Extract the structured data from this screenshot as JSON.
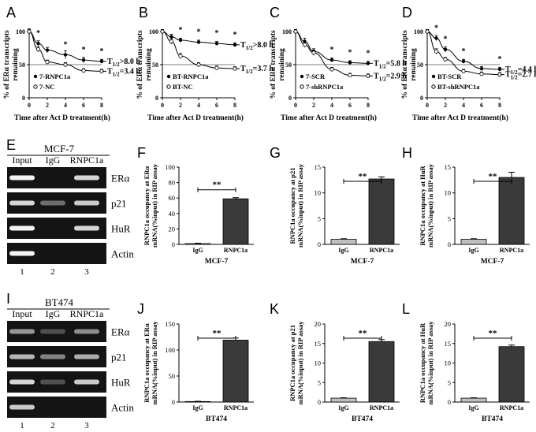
{
  "chart_data": [
    {
      "panel": "A",
      "type": "line",
      "ylabel": "% of ERα transcripts remaining",
      "xlabel": "Time after Act D treatment(h)",
      "xticks": [
        0,
        2,
        4,
        6,
        8
      ],
      "yticks": [
        0,
        50,
        100
      ],
      "xlim": [
        0,
        8
      ],
      "ylim": [
        0,
        100
      ],
      "reference_line": 50,
      "series": [
        {
          "name": "7-RNPC1a",
          "marker": "filled",
          "x": [
            0,
            1,
            2,
            4,
            6,
            8
          ],
          "y": [
            100,
            82,
            72,
            65,
            57,
            55
          ],
          "err": [
            4,
            4,
            4,
            6,
            4,
            3
          ],
          "half_life": "T1/2>8.0 h"
        },
        {
          "name": "7-NC",
          "marker": "open",
          "x": [
            0,
            1,
            2,
            4,
            6,
            8
          ],
          "y": [
            100,
            73,
            54,
            50,
            41,
            40
          ],
          "err": [
            3,
            4,
            3,
            3,
            3,
            3
          ],
          "half_life": "T1/2=3.4 h"
        }
      ],
      "significance": [
        {
          "x": 1,
          "label": "*"
        },
        {
          "x": 4,
          "label": "*"
        },
        {
          "x": 6,
          "label": "*"
        },
        {
          "x": 8,
          "label": "*"
        }
      ]
    },
    {
      "panel": "B",
      "type": "line",
      "ylabel": "% of ERα transcripts remaining",
      "xlabel": "Time after Act D treatment(h)",
      "xticks": [
        0,
        2,
        4,
        6,
        8
      ],
      "yticks": [
        0,
        50,
        100
      ],
      "xlim": [
        0,
        8
      ],
      "ylim": [
        0,
        100
      ],
      "reference_line": 50,
      "series": [
        {
          "name": "BT-RNPC1a",
          "marker": "filled",
          "x": [
            0,
            1,
            2,
            4,
            6,
            8
          ],
          "y": [
            100,
            92,
            87,
            84,
            82,
            80
          ],
          "err": [
            3,
            4,
            3,
            3,
            3,
            3
          ],
          "half_life": "T1/2>8.0 h"
        },
        {
          "name": "BT-NC",
          "marker": "open",
          "x": [
            0,
            1,
            2,
            4,
            6,
            8
          ],
          "y": [
            100,
            85,
            63,
            50,
            45,
            44
          ],
          "err": [
            3,
            4,
            4,
            3,
            3,
            3
          ],
          "half_life": "T1/2=3.7 h"
        }
      ],
      "significance": [
        {
          "x": 2,
          "label": "*"
        },
        {
          "x": 4,
          "label": "*"
        },
        {
          "x": 6,
          "label": "*"
        },
        {
          "x": 8,
          "label": "*"
        }
      ]
    },
    {
      "panel": "C",
      "type": "line",
      "ylabel": "% of ERα transcripts remaining",
      "xlabel": "Time after Act D treatment(h)",
      "xticks": [
        0,
        2,
        4,
        6,
        8
      ],
      "yticks": [
        0,
        50,
        100
      ],
      "xlim": [
        0,
        8
      ],
      "ylim": [
        0,
        100
      ],
      "reference_line": 50,
      "series": [
        {
          "name": "7-SCR",
          "marker": "filled",
          "x": [
            0,
            1,
            2,
            4,
            6,
            8
          ],
          "y": [
            100,
            85,
            70,
            57,
            53,
            52
          ],
          "err": [
            3,
            5,
            4,
            3,
            3,
            3
          ],
          "half_life": "T1/2=5.8 h"
        },
        {
          "name": "7-shRNPC1a",
          "marker": "open",
          "x": [
            0,
            1,
            2,
            4,
            6,
            8
          ],
          "y": [
            100,
            80,
            68,
            43,
            34,
            33
          ],
          "err": [
            3,
            4,
            4,
            3,
            3,
            3
          ],
          "half_life": "T1/2=2.9 h"
        }
      ],
      "significance": [
        {
          "x": 4,
          "label": "*"
        },
        {
          "x": 6,
          "label": "*"
        },
        {
          "x": 8,
          "label": "*"
        }
      ]
    },
    {
      "panel": "D",
      "type": "line",
      "ylabel": "% of ERα transcripts remaining",
      "xlabel": "Time after Act D treatment(h)",
      "xticks": [
        0,
        2,
        4,
        6,
        8
      ],
      "yticks": [
        0,
        50,
        100
      ],
      "xlim": [
        0,
        8
      ],
      "ylim": [
        0,
        100
      ],
      "reference_line": 50,
      "series": [
        {
          "name": "BT-SCR",
          "marker": "filled",
          "x": [
            0,
            1,
            2,
            4,
            6,
            8
          ],
          "y": [
            100,
            90,
            73,
            55,
            44,
            43
          ],
          "err": [
            3,
            4,
            4,
            3,
            3,
            3
          ],
          "half_life": "T1/2=4.4 h"
        },
        {
          "name": "BT-shRNPC1a",
          "marker": "open",
          "x": [
            0,
            1,
            2,
            4,
            6,
            8
          ],
          "y": [
            100,
            70,
            58,
            40,
            36,
            35
          ],
          "err": [
            3,
            4,
            3,
            3,
            3,
            3
          ],
          "half_life": "T1/2=2.7 h"
        }
      ],
      "significance": [
        {
          "x": 1,
          "label": "*"
        },
        {
          "x": 2,
          "label": "*"
        },
        {
          "x": 4,
          "label": "*"
        },
        {
          "x": 8,
          "label": "*"
        }
      ]
    },
    {
      "panel": "F",
      "type": "bar",
      "ylabel": "RNPC1a occupancy at ERα mRNA(%input) in RIP assay",
      "xlabel": "MCF-7",
      "categories": [
        "IgG",
        "RNPC1a"
      ],
      "values": [
        1,
        59
      ],
      "err": [
        0.5,
        1.5
      ],
      "bar_colors": [
        "#bfbfbf",
        "#3a3a3a"
      ],
      "yticks": [
        0,
        20,
        40,
        60,
        80,
        100
      ],
      "ylim": [
        0,
        100
      ],
      "significance": "**"
    },
    {
      "panel": "G",
      "type": "bar",
      "ylabel": "RNPC1a occupancy at p21 mRNA(%input) in RIP assay",
      "xlabel": "MCF-7",
      "categories": [
        "IgG",
        "RNPC1a"
      ],
      "values": [
        1,
        12.7
      ],
      "err": [
        0.1,
        0.4
      ],
      "bar_colors": [
        "#bfbfbf",
        "#3a3a3a"
      ],
      "yticks": [
        0,
        5,
        10,
        15
      ],
      "ylim": [
        0,
        15
      ],
      "significance": "**"
    },
    {
      "panel": "H",
      "type": "bar",
      "ylabel": "RNPC1a occupancy at HuR mRNA(%input) in RIP assay",
      "xlabel": "MCF-7",
      "categories": [
        "IgG",
        "RNPC1a"
      ],
      "values": [
        1,
        13
      ],
      "err": [
        0.1,
        1
      ],
      "bar_colors": [
        "#bfbfbf",
        "#3a3a3a"
      ],
      "yticks": [
        0,
        5,
        10,
        15
      ],
      "ylim": [
        0,
        15
      ],
      "significance": "**"
    },
    {
      "panel": "J",
      "type": "bar",
      "ylabel": "RNPC1a occupancy at ERα mRNA(%input) in RIP assay",
      "xlabel": "BT474",
      "categories": [
        "IgG",
        "RNPC1a"
      ],
      "values": [
        1,
        119
      ],
      "err": [
        0.5,
        4
      ],
      "bar_colors": [
        "#bfbfbf",
        "#3a3a3a"
      ],
      "yticks": [
        0,
        50,
        100,
        150
      ],
      "ylim": [
        0,
        150
      ],
      "significance": "**"
    },
    {
      "panel": "K",
      "type": "bar",
      "ylabel": "RNPC1a occupancy at p21 mRNA(%input) in RIP assay",
      "xlabel": "BT474",
      "categories": [
        "IgG",
        "RNPC1a"
      ],
      "values": [
        1,
        15.5
      ],
      "err": [
        0.1,
        0.5
      ],
      "bar_colors": [
        "#bfbfbf",
        "#3a3a3a"
      ],
      "yticks": [
        0,
        5,
        10,
        15,
        20
      ],
      "ylim": [
        0,
        20
      ],
      "significance": "**"
    },
    {
      "panel": "L",
      "type": "bar",
      "ylabel": "RNPC1a occupancy at HuR mRNA(%input) in RIP assay",
      "xlabel": "BT474",
      "categories": [
        "IgG",
        "RNPC1a"
      ],
      "values": [
        1,
        14.2
      ],
      "err": [
        0.1,
        0.4
      ],
      "bar_colors": [
        "#bfbfbf",
        "#3a3a3a"
      ],
      "yticks": [
        0,
        5,
        10,
        15,
        20
      ],
      "ylim": [
        0,
        20
      ],
      "significance": "**"
    }
  ],
  "gels": [
    {
      "panel": "E",
      "cell_line": "MCF-7",
      "lanes": [
        "Input",
        "IgG",
        "RNPC1a"
      ],
      "lane_numbers": [
        "1",
        "2",
        "3"
      ],
      "rows": [
        {
          "label": "ERα",
          "intensity": [
            1.0,
            0.0,
            0.85
          ]
        },
        {
          "label": "p21",
          "intensity": [
            0.85,
            0.35,
            0.8
          ]
        },
        {
          "label": "HuR",
          "intensity": [
            1.0,
            0.0,
            0.85
          ]
        },
        {
          "label": "Actin",
          "intensity": [
            1.0,
            0.0,
            0.0
          ]
        }
      ]
    },
    {
      "panel": "I",
      "cell_line": "BT474",
      "lanes": [
        "Input",
        "IgG",
        "RNPC1a"
      ],
      "lane_numbers": [
        "1",
        "2",
        "3"
      ],
      "rows": [
        {
          "label": "ERα",
          "intensity": [
            0.55,
            0.2,
            0.5
          ]
        },
        {
          "label": "p21",
          "intensity": [
            0.7,
            0.45,
            0.65
          ]
        },
        {
          "label": "HuR",
          "intensity": [
            0.85,
            0.2,
            0.8
          ]
        },
        {
          "label": "Actin",
          "intensity": [
            0.8,
            0.0,
            0.0
          ]
        }
      ]
    }
  ]
}
